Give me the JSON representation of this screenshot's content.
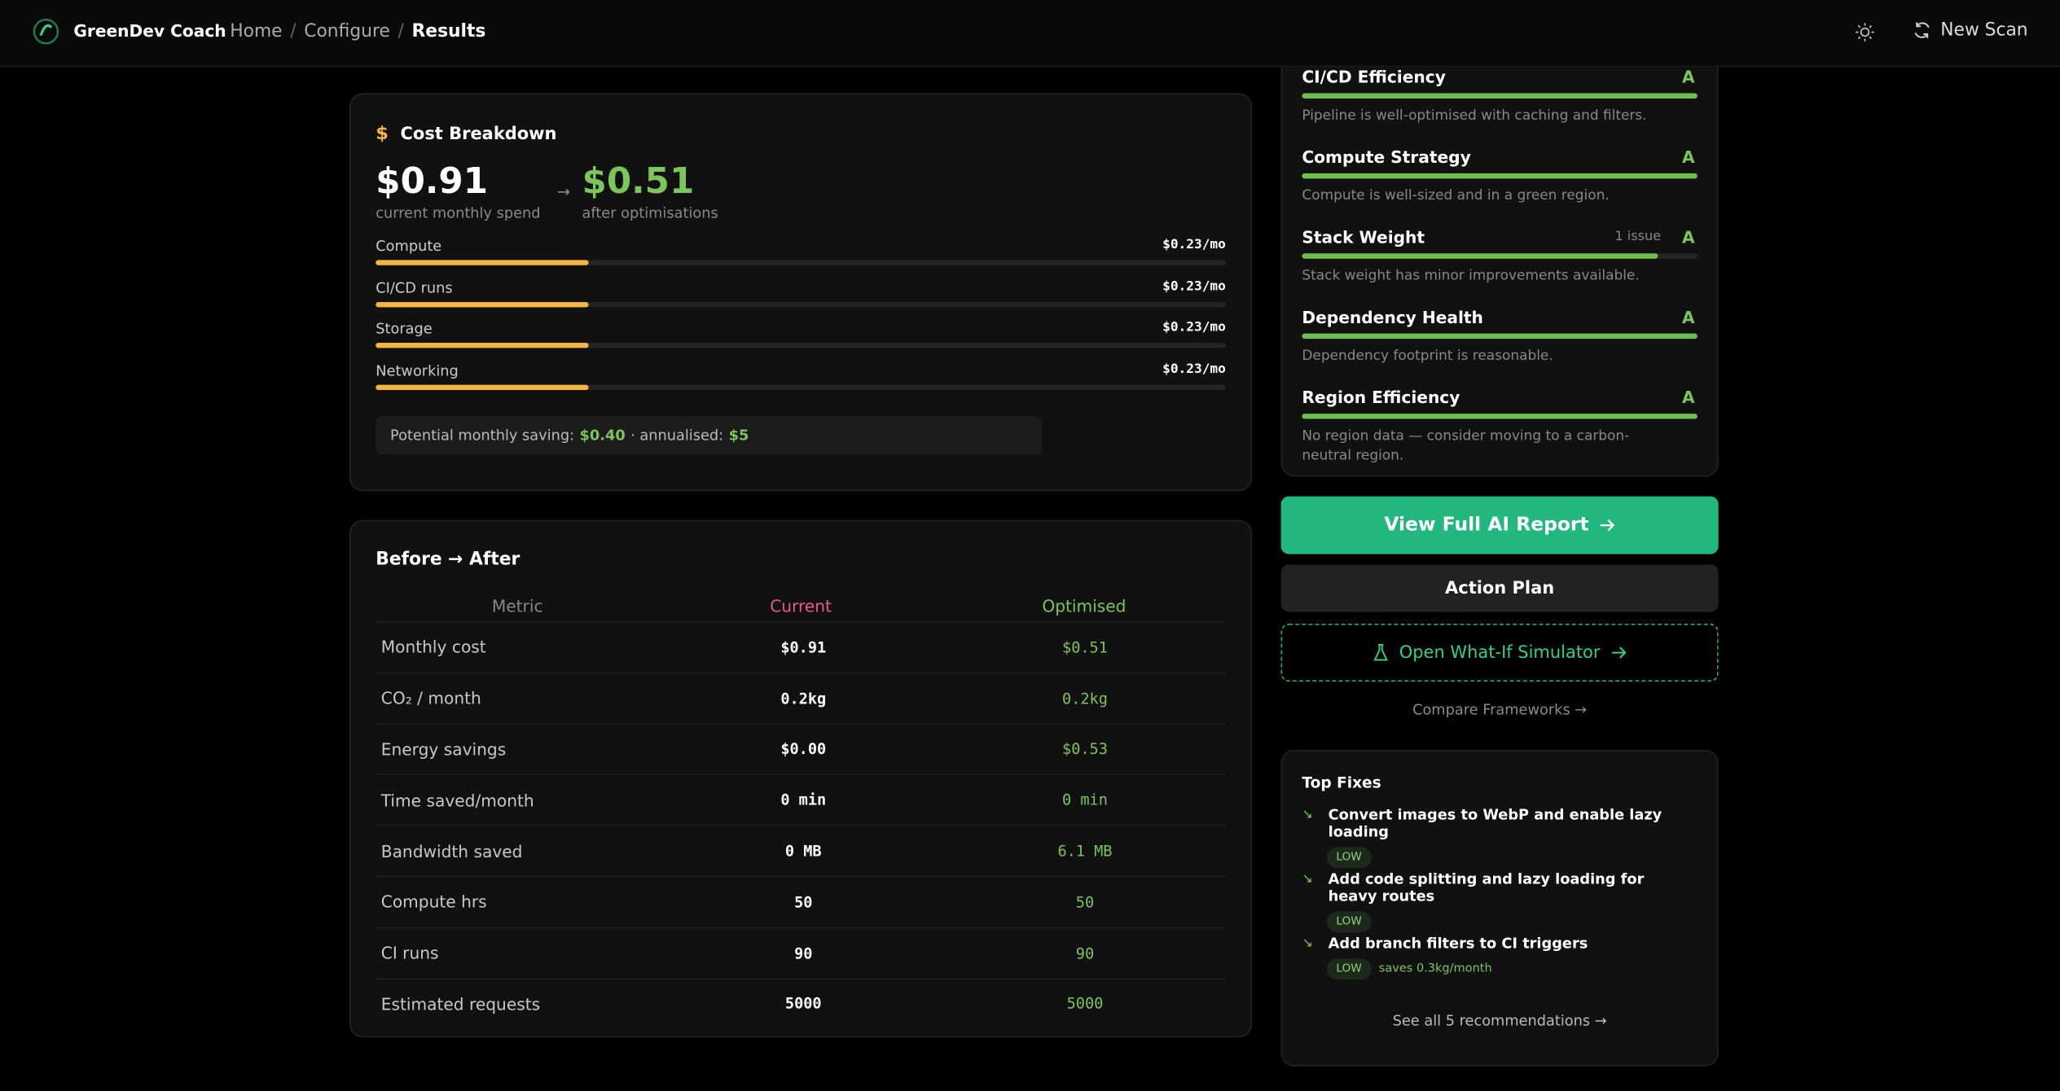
{
  "nav": {
    "brand": "GreenDev Coach",
    "breadcrumb": [
      "Home",
      "Configure",
      "Results"
    ],
    "new_scan": "New Scan"
  },
  "cost": {
    "title": "Cost Breakdown",
    "current": "$0.91",
    "current_label": "current monthly spend",
    "optimised": "$0.51",
    "optimised_label": "after optimisations",
    "items": [
      {
        "name": "Compute",
        "value": "$0.23/mo"
      },
      {
        "name": "CI/CD runs",
        "value": "$0.23/mo"
      },
      {
        "name": "Storage",
        "value": "$0.23/mo"
      },
      {
        "name": "Networking",
        "value": "$0.23/mo"
      }
    ],
    "saving": {
      "prefix": "Potential monthly saving:",
      "monthly": "$0.40",
      "mid": "· annualised:",
      "annual": "$5"
    }
  },
  "before_after": {
    "title": "Before → After",
    "headers": [
      "Metric",
      "Current",
      "Optimised"
    ],
    "rows": [
      [
        "Monthly cost",
        "$0.91",
        "$0.51"
      ],
      [
        "CO₂ / month",
        "0.2kg",
        "0.2kg"
      ],
      [
        "Energy savings",
        "$0.00",
        "$0.53"
      ],
      [
        "Time saved/month",
        "0 min",
        "0 min"
      ],
      [
        "Bandwidth saved",
        "0 MB",
        "6.1 MB"
      ],
      [
        "Compute hrs",
        "50",
        "50"
      ],
      [
        "CI runs",
        "90",
        "90"
      ],
      [
        "Estimated requests",
        "5000",
        "5000"
      ]
    ]
  },
  "scores": [
    {
      "name": "CI/CD Efficiency",
      "grade": "A",
      "note": "Pipeline is well-optimised with caching and filters."
    },
    {
      "name": "Compute Strategy",
      "grade": "A",
      "note": "Compute is well-sized and in a green region."
    },
    {
      "name": "Stack Weight",
      "issues": "1 issue",
      "grade": "A",
      "note": "Stack weight has minor improvements available."
    },
    {
      "name": "Dependency Health",
      "grade": "A",
      "note": "Dependency footprint is reasonable."
    },
    {
      "name": "Region Efficiency",
      "grade": "A",
      "note": "No region data — consider moving to a carbon-neutral region."
    }
  ],
  "actions": {
    "report": "View Full AI Report",
    "plan": "Action Plan",
    "simulator": "Open What-If Simulator",
    "compare": "Compare Frameworks →"
  },
  "top_fixes": {
    "title": "Top Fixes",
    "items": [
      {
        "text": "Convert images to WebP and enable lazy loading",
        "badge": "LOW"
      },
      {
        "text": "Add code splitting and lazy loading for heavy routes",
        "badge": "LOW"
      },
      {
        "text": "Add branch filters to CI triggers",
        "badge": "LOW",
        "note": "saves 0.3kg/month"
      }
    ],
    "see_all": "See all 5 recommendations →"
  }
}
